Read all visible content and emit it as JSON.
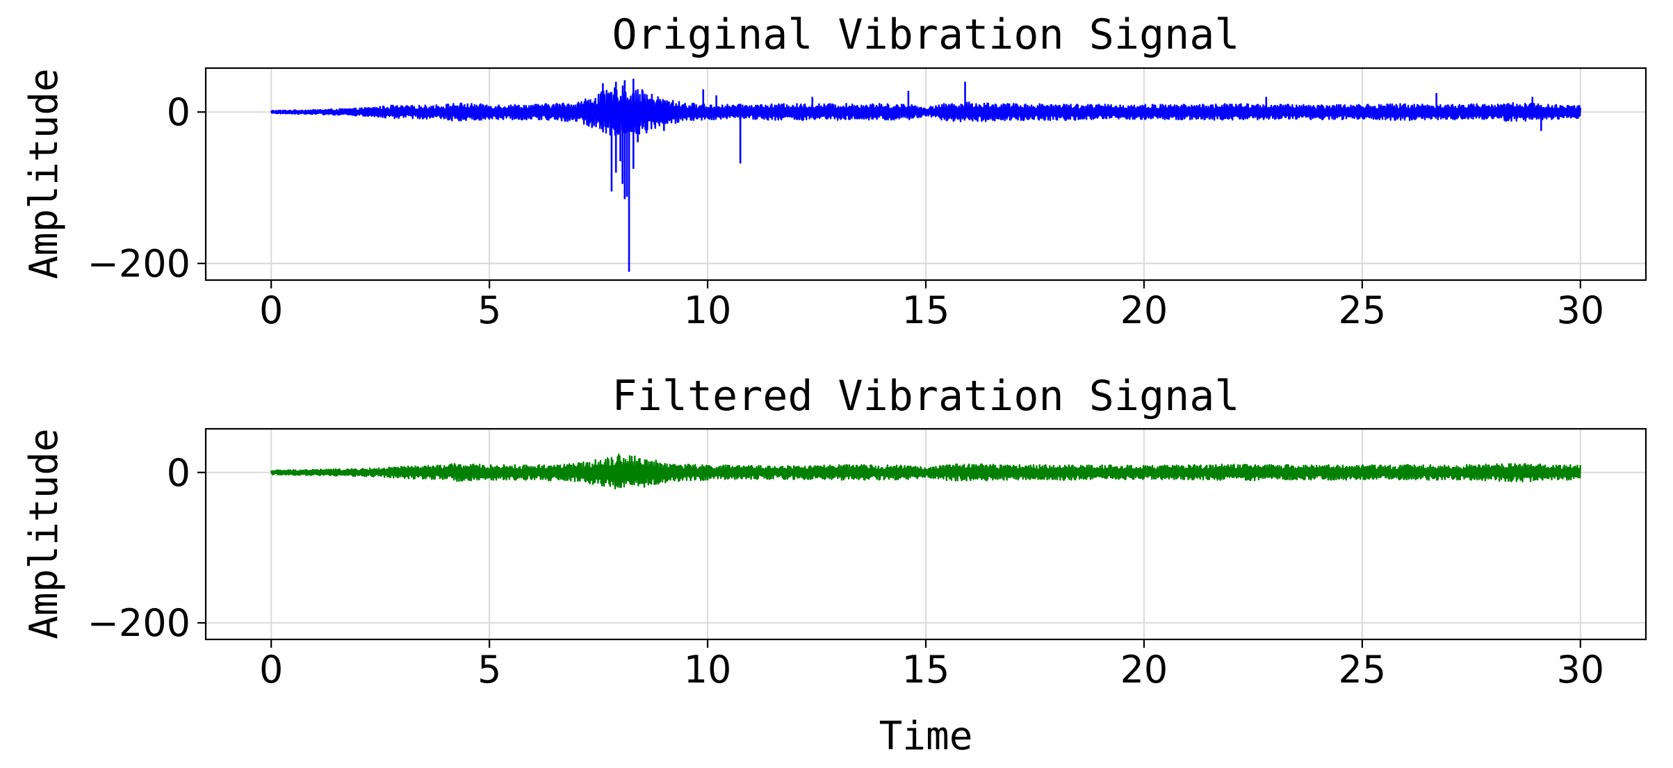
{
  "chart_data": [
    {
      "type": "line",
      "title": "Original Vibration Signal",
      "xlabel": "",
      "ylabel": "Amplitude",
      "xlim": [
        -1.5,
        31.5
      ],
      "ylim": [
        -222,
        58
      ],
      "x_ticks": [
        0,
        5,
        10,
        15,
        20,
        25,
        30
      ],
      "y_ticks": [
        0,
        -200
      ],
      "y_tick_labels": [
        "0",
        "−200"
      ],
      "grid": true,
      "series": [
        {
          "color": "#0000ff",
          "x_range": [
            0,
            30
          ],
          "baseline": 0,
          "envelope": [
            [
              0,
              2
            ],
            [
              1,
              3
            ],
            [
              2,
              5
            ],
            [
              2.8,
              9
            ],
            [
              3,
              8
            ],
            [
              4,
              10
            ],
            [
              4.2,
              12
            ],
            [
              5,
              10
            ],
            [
              6,
              10
            ],
            [
              7,
              13
            ],
            [
              7.5,
              25
            ],
            [
              8,
              35
            ],
            [
              8.5,
              28
            ],
            [
              9,
              18
            ],
            [
              9.5,
              12
            ],
            [
              10,
              10
            ],
            [
              11,
              10
            ],
            [
              12,
              11
            ],
            [
              13,
              11
            ],
            [
              14,
              11
            ],
            [
              14.7,
              10
            ],
            [
              15,
              6
            ],
            [
              15.5,
              12
            ],
            [
              16,
              13
            ],
            [
              17,
              11
            ],
            [
              18,
              11
            ],
            [
              19,
              10
            ],
            [
              20,
              10
            ],
            [
              21,
              10
            ],
            [
              22,
              11
            ],
            [
              23,
              10
            ],
            [
              24,
              10
            ],
            [
              25,
              10
            ],
            [
              26,
              11
            ],
            [
              27,
              10
            ],
            [
              28,
              11
            ],
            [
              28.8,
              13
            ],
            [
              29.2,
              10
            ],
            [
              30,
              9
            ]
          ],
          "spikes": [
            [
              7.8,
              -105
            ],
            [
              7.9,
              -80
            ],
            [
              8.0,
              -65
            ],
            [
              8.05,
              -95
            ],
            [
              8.1,
              -115
            ],
            [
              8.15,
              -112
            ],
            [
              8.2,
              -211
            ],
            [
              8.3,
              -75
            ],
            [
              8.4,
              -40
            ],
            [
              8.6,
              -28
            ],
            [
              8.8,
              -22
            ],
            [
              9.0,
              -25
            ],
            [
              7.6,
              -22
            ],
            [
              10.75,
              -68
            ],
            [
              7.6,
              38
            ],
            [
              7.9,
              40
            ],
            [
              8.1,
              42
            ],
            [
              8.3,
              44
            ],
            [
              8.5,
              30
            ],
            [
              9.9,
              30
            ],
            [
              10.2,
              22
            ],
            [
              12.4,
              20
            ],
            [
              14.6,
              28
            ],
            [
              15.9,
              40
            ],
            [
              22.8,
              20
            ],
            [
              26.7,
              25
            ],
            [
              28.9,
              20
            ],
            [
              29.1,
              -25
            ]
          ]
        }
      ]
    },
    {
      "type": "line",
      "title": "Filtered Vibration Signal",
      "xlabel": "Time",
      "ylabel": "Amplitude",
      "xlim": [
        -1.5,
        31.5
      ],
      "ylim": [
        -222,
        58
      ],
      "x_ticks": [
        0,
        5,
        10,
        15,
        20,
        25,
        30
      ],
      "y_ticks": [
        0,
        -200
      ],
      "y_tick_labels": [
        "0",
        "−200"
      ],
      "grid": true,
      "series": [
        {
          "color": "#008000",
          "x_range": [
            0,
            30
          ],
          "baseline": 0,
          "envelope": [
            [
              0,
              3
            ],
            [
              1,
              4
            ],
            [
              2,
              5
            ],
            [
              2.5,
              6
            ],
            [
              3,
              8
            ],
            [
              4,
              10
            ],
            [
              4.2,
              12
            ],
            [
              5,
              10
            ],
            [
              6,
              10
            ],
            [
              7,
              12
            ],
            [
              7.5,
              18
            ],
            [
              8,
              25
            ],
            [
              8.5,
              20
            ],
            [
              9,
              14
            ],
            [
              9.5,
              11
            ],
            [
              10,
              10
            ],
            [
              11,
              9
            ],
            [
              12,
              9
            ],
            [
              13,
              10
            ],
            [
              14,
              10
            ],
            [
              14.7,
              9
            ],
            [
              15,
              6
            ],
            [
              15.5,
              11
            ],
            [
              16,
              12
            ],
            [
              17,
              10
            ],
            [
              18,
              10
            ],
            [
              19,
              10
            ],
            [
              20,
              9
            ],
            [
              21,
              10
            ],
            [
              22,
              11
            ],
            [
              23,
              10
            ],
            [
              24,
              10
            ],
            [
              25,
              10
            ],
            [
              26,
              10
            ],
            [
              27,
              10
            ],
            [
              28,
              11
            ],
            [
              28.8,
              13
            ],
            [
              29.2,
              10
            ],
            [
              30,
              10
            ]
          ],
          "spikes": []
        }
      ]
    }
  ]
}
